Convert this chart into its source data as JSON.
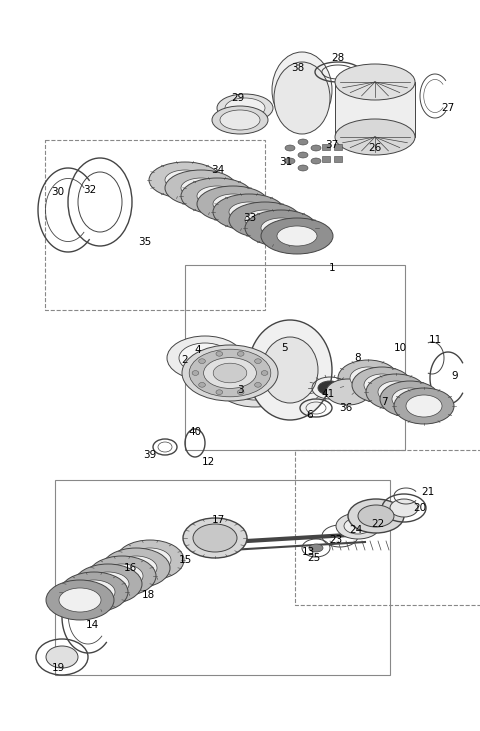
{
  "bg_color": "#ffffff",
  "line_color": "#444444",
  "label_color": "#000000",
  "figsize": [
    4.8,
    7.31
  ],
  "dpi": 100,
  "label_fontsize": 7.5
}
